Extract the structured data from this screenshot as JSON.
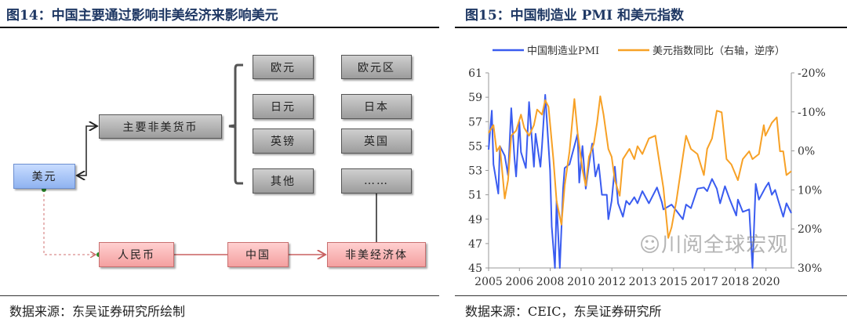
{
  "left_panel": {
    "title": "图14：中国主要通过影响非美经济来影响美元",
    "source": "数据来源：东吴证券研究所绘制",
    "diagram": {
      "usd": "美元",
      "major_non_usd": "主要非美货币",
      "currencies": [
        "欧元",
        "日元",
        "英镑",
        "其他"
      ],
      "economies": [
        "欧元区",
        "日本",
        "英国",
        "……"
      ],
      "rmb": "人民币",
      "china": "中国",
      "non_us_economies": "非美经济体"
    },
    "colors": {
      "usd_box": "#a9c4f5",
      "currency_box": "#b5b5b5",
      "china_chain_box": "#f8b8b8",
      "chain_line": "#c86060"
    }
  },
  "right_panel": {
    "title": "图15：中国制造业 PMI 和美元指数",
    "source": "数据来源：CEIC，东吴证券研究所",
    "watermark": "川阅全球宏观"
  },
  "chart_data": {
    "type": "line",
    "title": "",
    "legend_position": "top",
    "grid": false,
    "x_tick_labels": [
      "2005",
      "2006",
      "2008",
      "2010",
      "2012",
      "2013",
      "2015",
      "2017",
      "2018",
      "2020"
    ],
    "x_range": [
      "2005-01",
      "2020-08"
    ],
    "left_axis": {
      "range": [
        45,
        61
      ],
      "ticks": [
        "45",
        "47",
        "49",
        "51",
        "53",
        "55",
        "57",
        "59",
        "61"
      ]
    },
    "right_axis": {
      "range": [
        -20,
        30
      ],
      "reversed": true,
      "unit": "%",
      "ticks": [
        "-20%",
        "-10%",
        "0%",
        "10%",
        "20%",
        "30%"
      ]
    },
    "series": [
      {
        "name": "中国制造业PMI",
        "axis": "left",
        "color": "#3a5cf0",
        "x": [
          "2005-01",
          "2005-03",
          "2005-04",
          "2005-07",
          "2005-08",
          "2005-11",
          "2006-01",
          "2006-03",
          "2006-05",
          "2006-06",
          "2006-08",
          "2006-09",
          "2006-12",
          "2007-02",
          "2007-05",
          "2007-06",
          "2007-09",
          "2007-10",
          "2007-12",
          "2008-03",
          "2008-04",
          "2008-06",
          "2008-07",
          "2008-09",
          "2008-11",
          "2008-12",
          "2009-03",
          "2009-06",
          "2009-08",
          "2009-09",
          "2009-11",
          "2010-01",
          "2010-03",
          "2010-05",
          "2010-07",
          "2010-09",
          "2010-11",
          "2011-02",
          "2011-03",
          "2011-05",
          "2011-07",
          "2011-09",
          "2011-12",
          "2012-02",
          "2012-04",
          "2012-07",
          "2012-09",
          "2012-12",
          "2013-04",
          "2013-09",
          "2013-12",
          "2014-01",
          "2014-06",
          "2014-09",
          "2015-01",
          "2015-03",
          "2015-06",
          "2015-10",
          "2016-02",
          "2016-04",
          "2016-07",
          "2016-10",
          "2016-12",
          "2017-03",
          "2017-06",
          "2017-10",
          "2017-11",
          "2018-02",
          "2018-06",
          "2018-08",
          "2018-10",
          "2018-12",
          "2019-04",
          "2019-06",
          "2019-08",
          "2019-10",
          "2019-12",
          "2020-03",
          "2020-05",
          "2020-08"
        ],
        "values": [
          54.7,
          57.9,
          53.5,
          51.1,
          55.0,
          54.2,
          52.6,
          58.1,
          54.0,
          52.5,
          57.0,
          54.5,
          53.2,
          58.6,
          53.3,
          56.0,
          53.3,
          55.0,
          59.2,
          53.0,
          48.4,
          45.0,
          50.5,
          45.0,
          51.5,
          53.2,
          53.5,
          55.0,
          56.0,
          52.0,
          55.0,
          51.5,
          53.5,
          55.2,
          52.5,
          53.5,
          51.0,
          51.0,
          49.0,
          50.5,
          53.3,
          50.3,
          49.2,
          50.5,
          50.2,
          50.8,
          50.3,
          51.3,
          50.3,
          51.6,
          50.4,
          49.8,
          50.2,
          49.7,
          49.0,
          50.2,
          49.9,
          51.5,
          51.6,
          51.3,
          52.3,
          51.5,
          50.3,
          51.7,
          50.6,
          49.3,
          50.6,
          49.6,
          49.8,
          45.0,
          51.9,
          50.6,
          51.6,
          52.0,
          51.0,
          51.4,
          50.5,
          49.2,
          50.3,
          49.5
        ]
      },
      {
        "name": "美元指数同比（右轴，逆序）",
        "axis": "right",
        "color": "#f7a126",
        "x": [
          "2005-01",
          "2005-04",
          "2005-06",
          "2005-08",
          "2005-11",
          "2006-01",
          "2006-03",
          "2006-06",
          "2006-09",
          "2006-11",
          "2007-02",
          "2007-05",
          "2007-07",
          "2007-10",
          "2007-12",
          "2008-02",
          "2008-05",
          "2008-07",
          "2008-10",
          "2008-12",
          "2009-03",
          "2009-06",
          "2009-08",
          "2009-11",
          "2010-01",
          "2010-03",
          "2010-06",
          "2010-08",
          "2010-10",
          "2010-12",
          "2011-03",
          "2011-05",
          "2011-07",
          "2011-10",
          "2011-12",
          "2012-04",
          "2012-07",
          "2012-09",
          "2012-12",
          "2013-04",
          "2013-08",
          "2013-10",
          "2014-01",
          "2014-04",
          "2014-06",
          "2014-09",
          "2015-01",
          "2015-03",
          "2015-06",
          "2015-10",
          "2016-02",
          "2016-04",
          "2016-07",
          "2016-10",
          "2017-01",
          "2017-04",
          "2017-07",
          "2017-11",
          "2018-02",
          "2018-06",
          "2018-08",
          "2018-12",
          "2019-03",
          "2019-04",
          "2019-08",
          "2019-11",
          "2020-01",
          "2020-03",
          "2020-05",
          "2020-08"
        ],
        "values": [
          -4.6,
          -6.6,
          0.1,
          -1.2,
          12.2,
          7.5,
          -3.9,
          -5.2,
          -9.3,
          -5.9,
          -3.9,
          -6.6,
          -10.6,
          -9.3,
          -13.0,
          -11.3,
          2.1,
          12.9,
          18.9,
          8.9,
          0.1,
          -13.3,
          -4.6,
          4.8,
          8.9,
          1.5,
          -1.9,
          -7.2,
          -14.0,
          -9.3,
          -0.5,
          1.5,
          7.5,
          11.5,
          2.1,
          -0.5,
          2.1,
          -1.2,
          0.8,
          -3.2,
          -3.9,
          1.5,
          9.5,
          22.3,
          19.6,
          12.9,
          1.5,
          -3.9,
          -0.5,
          0.8,
          6.2,
          -0.5,
          -3.2,
          -10.3,
          -9.9,
          2.1,
          3.5,
          7.5,
          2.1,
          0.1,
          2.1,
          0.8,
          -6.6,
          -3.9,
          -7.2,
          -8.6,
          0.1,
          0.1,
          6.2,
          5.2
        ]
      }
    ]
  }
}
